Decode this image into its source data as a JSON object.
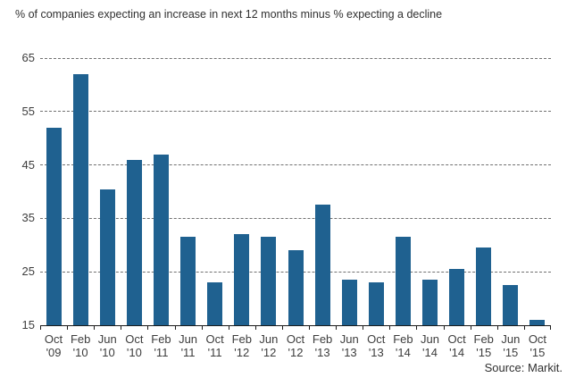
{
  "colors": {
    "bar": "#1f6190",
    "grid": "#707070",
    "axis": "#1a1a1a",
    "text": "#3d3d3d"
  },
  "source_label": "Source: Markit.",
  "chart_data": {
    "type": "bar",
    "title": "% of companies expecting an increase in next 12 months minus % expecting a decline",
    "source": "Source: Markit.",
    "categories": [
      "Oct '09",
      "Feb '10",
      "Jun '10",
      "Oct '10",
      "Feb '11",
      "Jun '11",
      "Oct '11",
      "Feb '12",
      "Jun '12",
      "Oct '12",
      "Feb '13",
      "Jun '13",
      "Oct '13",
      "Feb '14",
      "Jun '14",
      "Oct '14",
      "Feb '15",
      "Jun '15",
      "Oct '15"
    ],
    "values": [
      52,
      62,
      40.5,
      46,
      47,
      31.5,
      23,
      32,
      31.5,
      29,
      37.5,
      23.5,
      23,
      31.5,
      23.5,
      25.5,
      29.5,
      22.5,
      16
    ],
    "xlabel": "",
    "ylabel": "",
    "ylim": [
      15,
      65
    ],
    "yticks": [
      15,
      25,
      35,
      45,
      55,
      65
    ],
    "grid": "horizontal-dashed",
    "legend": "none",
    "bar_color": "#1f6190"
  }
}
